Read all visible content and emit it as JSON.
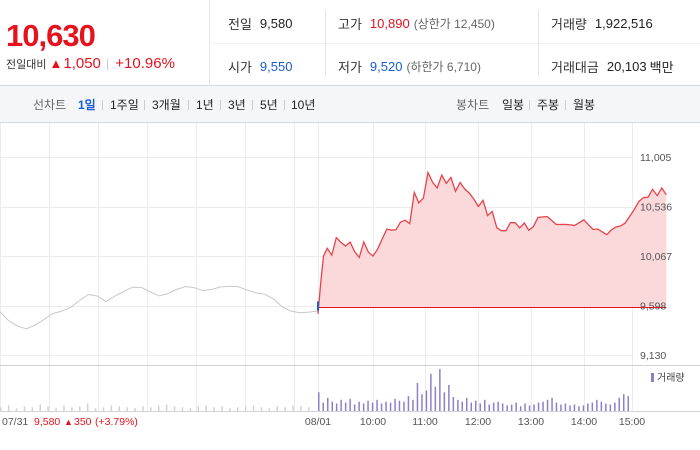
{
  "quote": {
    "price": "10,630",
    "change_label": "전일대비",
    "change_arrow": "▲",
    "change_value": "1,050",
    "change_rate": "+10.96%",
    "up_color": "#e4131d",
    "down_color": "#1a5bd6",
    "prev_close_label": "전일",
    "prev_close": "9,580",
    "high_label": "고가",
    "high": "10,890",
    "upper_limit": "(상한가 12,450)",
    "volume_label": "거래량",
    "volume": "1,922,516",
    "open_label": "시가",
    "open": "9,550",
    "low_label": "저가",
    "low": "9,520",
    "lower_limit": "(하한가 6,710)",
    "trade_value_label": "거래대금",
    "trade_value": "20,103",
    "trade_value_unit": "백만"
  },
  "periods": {
    "line_label": "선차트",
    "line_items": [
      "1일",
      "1주일",
      "3개월",
      "1년",
      "3년",
      "5년",
      "10년"
    ],
    "active": "1일",
    "candle_label": "봉차트",
    "candle_items": [
      "일봉",
      "주봉",
      "월봉"
    ]
  },
  "chart_data": {
    "type": "line",
    "y_ticks": [
      "11,005",
      "10,536",
      "10,067",
      "9,598",
      "9,130"
    ],
    "ylim": [
      9130,
      11005
    ],
    "reference_line": 9580,
    "x_ticks": [
      "08/01",
      "10:00",
      "11:00",
      "12:00",
      "13:00",
      "14:00",
      "15:00"
    ],
    "volume_legend": "거래량",
    "prev_day": {
      "date": "07/31",
      "close": "9,580",
      "arrow": "▲",
      "change": "350",
      "rate": "(+3.79%)"
    },
    "series": [
      {
        "values": [
          9540,
          9470,
          9420,
          9380,
          9400,
          9450,
          9520,
          9560,
          9600,
          9650,
          9690,
          9670,
          9630,
          9700,
          9750,
          9780,
          9760,
          9710,
          9680,
          9720,
          9770,
          9790,
          9760,
          9720,
          9740,
          9780,
          9800,
          9790,
          9740,
          9700,
          9690,
          9660,
          9600,
          9560,
          9530,
          9520,
          9530
        ],
        "color": "#c8c8c8"
      },
      {
        "x": [
          "09:00",
          "09:03",
          "09:06",
          "09:10",
          "09:15",
          "09:20",
          "09:25",
          "09:30",
          "09:35",
          "09:40",
          "09:45",
          "09:50",
          "09:55",
          "10:00",
          "10:05",
          "10:10",
          "10:15",
          "10:20",
          "10:25",
          "10:30",
          "10:35",
          "10:40",
          "10:45",
          "10:50",
          "10:55",
          "11:00",
          "11:05",
          "11:10",
          "11:15",
          "11:20",
          "11:25",
          "11:30",
          "11:35",
          "11:40",
          "11:45",
          "11:50",
          "11:55",
          "12:00",
          "12:05",
          "12:10",
          "12:15",
          "12:20",
          "12:25",
          "12:30",
          "12:35",
          "12:40",
          "12:45",
          "12:50",
          "12:55",
          "13:00",
          "13:10",
          "13:20",
          "13:30",
          "13:40",
          "13:50",
          "14:00",
          "14:05",
          "14:10",
          "14:15",
          "14:20",
          "14:25",
          "14:30",
          "14:35",
          "14:40",
          "14:45",
          "14:50",
          "14:55",
          "15:00",
          "15:05",
          "15:10",
          "15:15",
          "15:20"
        ],
        "values": [
          9520,
          9800,
          10050,
          10150,
          10100,
          10250,
          10180,
          10140,
          10200,
          10130,
          10070,
          10190,
          10080,
          10060,
          10150,
          10250,
          10320,
          10290,
          10300,
          10400,
          10430,
          10380,
          10650,
          10550,
          10620,
          10880,
          10780,
          10700,
          10810,
          10750,
          10830,
          10700,
          10760,
          10680,
          10650,
          10620,
          10560,
          10600,
          10430,
          10470,
          10340,
          10330,
          10320,
          10370,
          10360,
          10330,
          10400,
          10330,
          10340,
          10410,
          10430,
          10380,
          10390,
          10360,
          10390,
          10300,
          10330,
          10320,
          10280,
          10300,
          10320,
          10350,
          10400,
          10460,
          10500,
          10560,
          10610,
          10640,
          10720,
          10640,
          10690,
          10630
        ],
        "color": "#e8434a",
        "fill": "#fbd9db"
      }
    ],
    "volume": [
      4,
      6,
      3,
      5,
      4,
      7,
      5,
      3,
      6,
      4,
      5,
      8,
      3,
      4,
      6,
      5,
      4,
      3,
      5,
      4,
      6,
      7,
      5,
      4,
      3,
      5,
      6,
      4,
      5,
      3,
      4,
      5,
      6,
      4,
      3,
      5,
      4,
      6,
      5,
      4,
      20,
      9,
      14,
      10,
      8,
      12,
      9,
      13,
      7,
      10,
      8,
      11,
      9,
      12,
      8,
      10,
      9,
      13,
      11,
      10,
      16,
      12,
      30,
      18,
      22,
      40,
      26,
      45,
      20,
      28,
      15,
      12,
      10,
      14,
      9,
      11,
      8,
      12,
      7,
      9,
      10,
      8,
      6,
      7,
      9,
      5,
      8,
      6,
      7,
      9,
      10,
      12,
      14,
      9,
      7,
      8,
      6,
      7,
      5,
      6,
      8,
      9,
      12,
      10,
      8,
      7,
      9,
      14,
      18,
      16
    ]
  }
}
